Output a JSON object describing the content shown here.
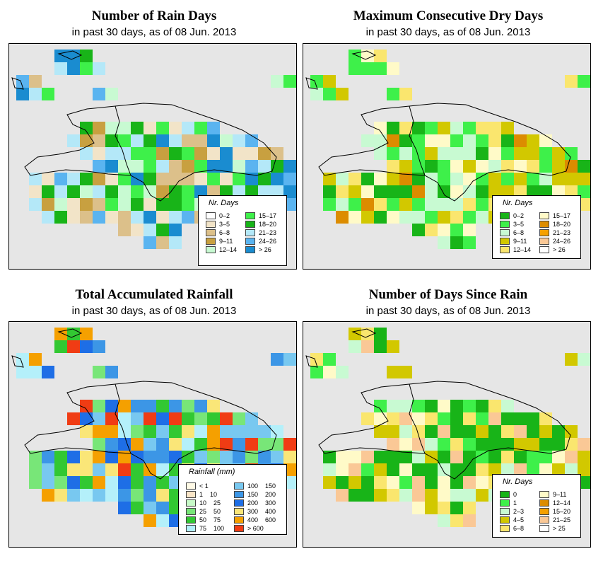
{
  "panels": [
    {
      "title": "Number of Rain Days",
      "subtitle": "in past 30 days, as of  08 Jun. 2013",
      "legend_title": "Nr. Days",
      "legend_items": [
        {
          "label": "0–2",
          "color": "#ffffff"
        },
        {
          "label": "3–5",
          "color": "#f2e4c8"
        },
        {
          "label": "6–8",
          "color": "#dcc08a"
        },
        {
          "label": "9–11",
          "color": "#c8a040"
        },
        {
          "label": "12–14",
          "color": "#c8fad2"
        },
        {
          "label": "15–17",
          "color": "#3ef04a"
        },
        {
          "label": "18–20",
          "color": "#18b418"
        },
        {
          "label": "21–23",
          "color": "#b4e8f8"
        },
        {
          "label": "24–26",
          "color": "#5ab4f0"
        },
        {
          "label": "> 26",
          "color": "#1a8cd0"
        }
      ]
    },
    {
      "title": "Maximum Consecutive Dry Days",
      "subtitle": "in past 30 days, as of  08 Jun. 2013",
      "legend_title": "Nr. Days",
      "legend_items": [
        {
          "label": "0–2",
          "color": "#18b418"
        },
        {
          "label": "3–5",
          "color": "#3ef04a"
        },
        {
          "label": "6–8",
          "color": "#c8fad2"
        },
        {
          "label": "9–11",
          "color": "#d2c800"
        },
        {
          "label": "12–14",
          "color": "#fae66e"
        },
        {
          "label": "15–17",
          "color": "#fffac8"
        },
        {
          "label": "18–20",
          "color": "#dc8c00"
        },
        {
          "label": "21–23",
          "color": "#f5a000"
        },
        {
          "label": "24–26",
          "color": "#fac896"
        },
        {
          "label": "> 26",
          "color": "#ffffff"
        }
      ]
    },
    {
      "title": "Total Accumulated Rainfall",
      "subtitle": "in past 30 days, as of  08 Jun. 2013",
      "legend_title": "Rainfall (mm)",
      "legend_items": [
        {
          "label": "< 1",
          "color": "#fffae6"
        },
        {
          "label": "1    10",
          "color": "#fae6c8"
        },
        {
          "label": "10    25",
          "color": "#c8fac8"
        },
        {
          "label": "25    50",
          "color": "#78e678"
        },
        {
          "label": "50    75",
          "color": "#32c832"
        },
        {
          "label": "75    100",
          "color": "#b4f0fa"
        },
        {
          "label": "100    150",
          "color": "#78c8f0"
        },
        {
          "label": "150    200",
          "color": "#3c96e6"
        },
        {
          "label": "200    300",
          "color": "#1e6ee6"
        },
        {
          "label": "300    400",
          "color": "#fae678"
        },
        {
          "label": "400    600",
          "color": "#f5a000"
        },
        {
          "label": "> 600",
          "color": "#f03c14"
        }
      ]
    },
    {
      "title": "Number of Days Since Rain",
      "subtitle": "in past 30 days, as of  08 Jun. 2013",
      "legend_title": "Nr. Days",
      "legend_items": [
        {
          "label": "0",
          "color": "#18b418"
        },
        {
          "label": "1",
          "color": "#3ef04a"
        },
        {
          "label": "2–3",
          "color": "#c8fad2"
        },
        {
          "label": "4–5",
          "color": "#d2c800"
        },
        {
          "label": "6–8",
          "color": "#fae66e"
        },
        {
          "label": "9–11",
          "color": "#fffac8"
        },
        {
          "label": "12–14",
          "color": "#dc8c00"
        },
        {
          "label": "15–20",
          "color": "#f5a000"
        },
        {
          "label": "21–25",
          "color": "#fac896"
        },
        {
          "label": "> 25",
          "color": "#ffffff"
        }
      ]
    }
  ],
  "ocean_color": "#e6e6e6"
}
